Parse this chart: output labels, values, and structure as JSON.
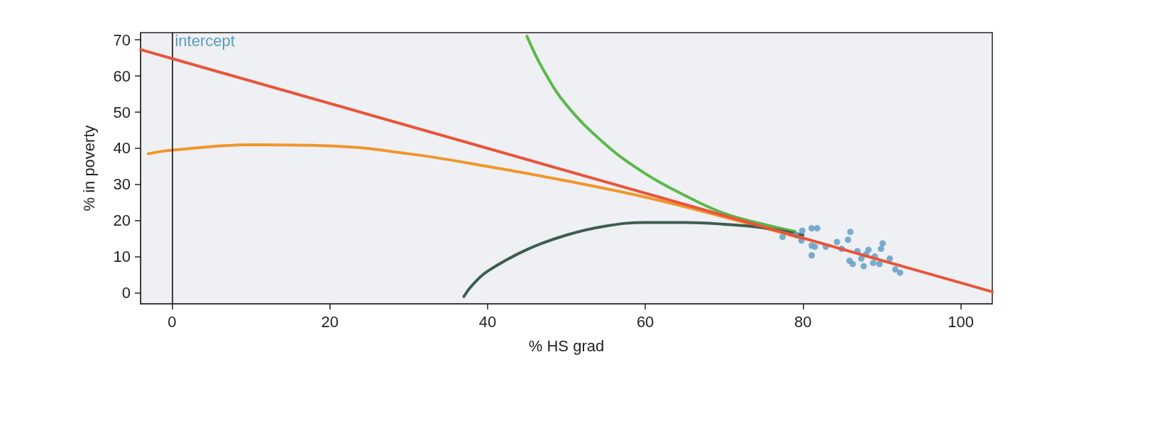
{
  "chart_data": {
    "type": "line",
    "xlabel": "% HS grad",
    "ylabel": "% in poverty",
    "xlim": [
      -4,
      104
    ],
    "ylim": [
      -3,
      72
    ],
    "xticks": [
      0,
      20,
      40,
      60,
      80,
      100
    ],
    "yticks": [
      0,
      10,
      20,
      30,
      40,
      50,
      60,
      70
    ],
    "grid": false,
    "ref_lines": [
      {
        "axis": "x",
        "value": 0,
        "label": "intercept",
        "color": "#000000"
      }
    ],
    "series": [
      {
        "marker": "none",
        "color": "#f0962a",
        "x": [
          -3,
          0,
          10,
          20,
          30,
          40,
          50,
          60,
          70,
          80
        ],
        "values": [
          38.5,
          39.5,
          41,
          40.7,
          38.5,
          35,
          31,
          26.5,
          21,
          15
        ]
      },
      {
        "marker": "none",
        "color": "#5cb84a",
        "x": [
          45,
          47,
          50,
          55,
          60,
          65,
          70,
          75,
          79
        ],
        "values": [
          71,
          62,
          52,
          41,
          33,
          27,
          22,
          19,
          17
        ]
      },
      {
        "marker": "none",
        "color": "#3d5e50",
        "x": [
          37,
          38,
          40,
          45,
          50,
          55,
          60,
          65,
          70,
          75,
          80
        ],
        "values": [
          -1,
          2,
          6,
          12,
          16,
          18.5,
          19.5,
          19.5,
          19,
          18,
          16
        ]
      },
      {
        "type": "scatter",
        "marker": "circle",
        "color": "#6aa3c8",
        "x": [
          77.4,
          79.9,
          81.1,
          81.8,
          79.8,
          81.1,
          81.5,
          81.1,
          82.9,
          84.3,
          86.0,
          85.7,
          84.9,
          86.9,
          88.3,
          89.9,
          90.1,
          85.9,
          86.3,
          87.4,
          87.7,
          88.9,
          89.7,
          91.0,
          91.7,
          92.3,
          89.1,
          79.1,
          88.0
        ],
        "values": [
          15.5,
          17.2,
          17.9,
          17.9,
          14.5,
          13.1,
          12.8,
          10.4,
          12.8,
          14.1,
          16.9,
          14.7,
          12.2,
          11.6,
          11.9,
          12.2,
          13.7,
          8.9,
          8.0,
          9.5,
          7.4,
          8.3,
          8.0,
          9.5,
          6.5,
          5.6,
          10.1,
          16.0,
          10.7
        ]
      },
      {
        "marker": "none",
        "color": "#e8553a",
        "x": [
          -4,
          104
        ],
        "values": [
          67.3,
          0.3
        ]
      }
    ]
  }
}
